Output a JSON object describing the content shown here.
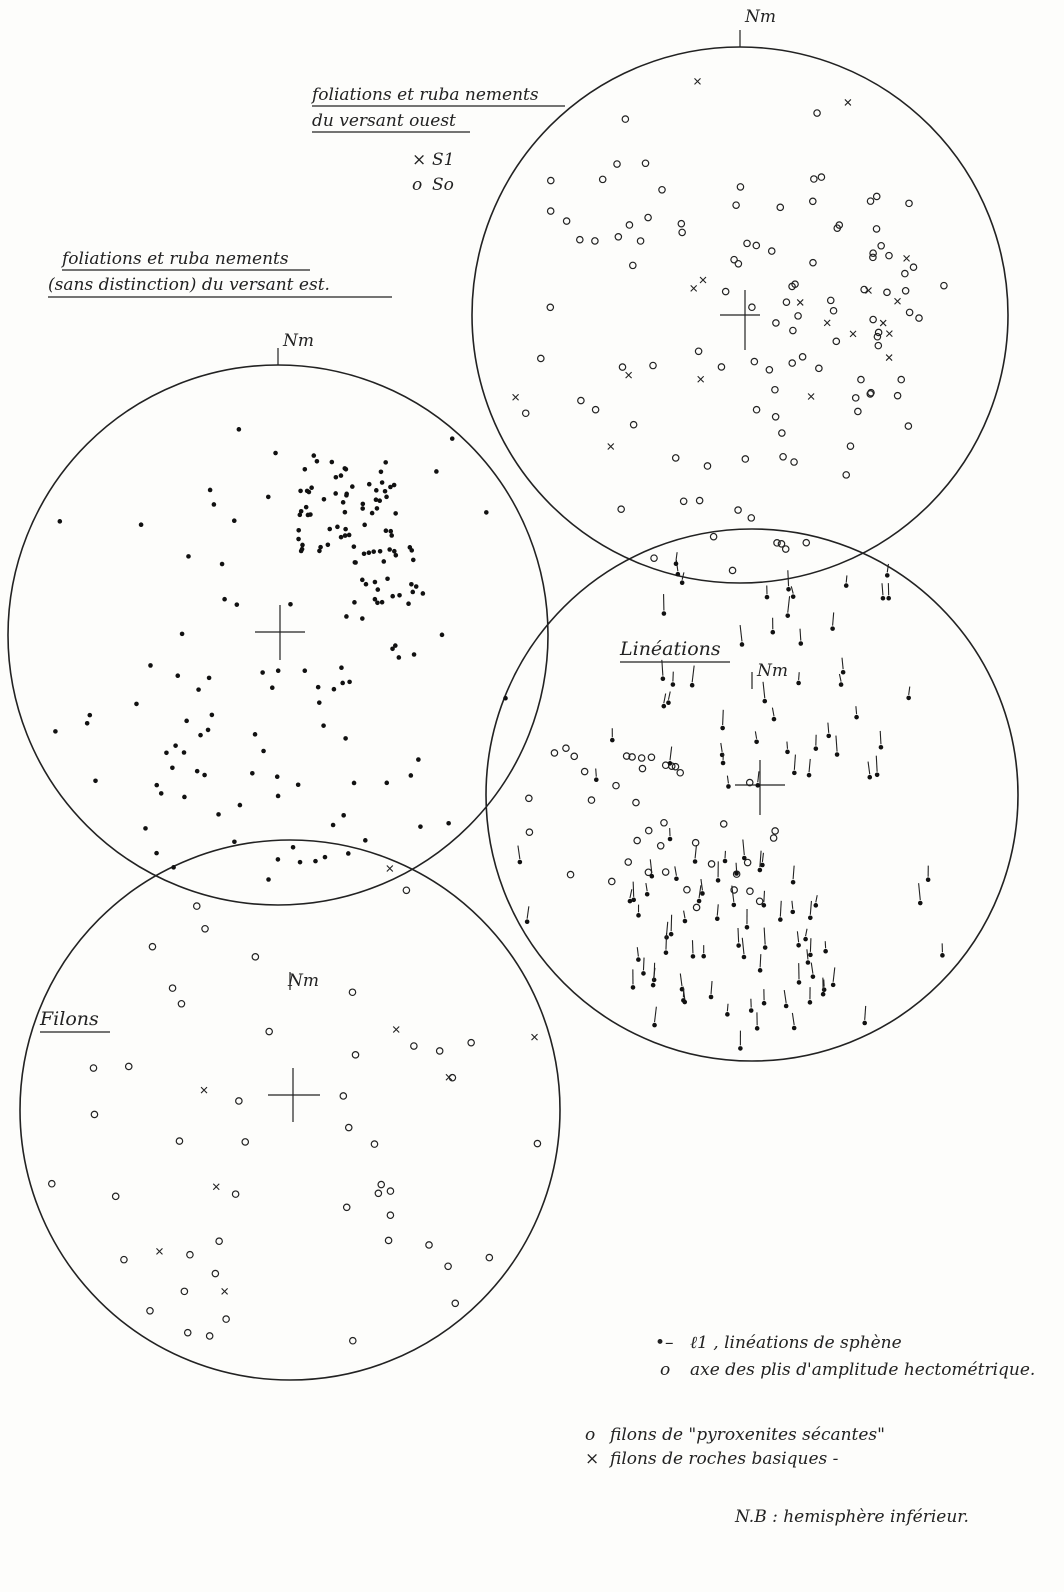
{
  "stereonets": [
    {
      "title_lines": [
        "foliations et ruba nements",
        "du versant ouest"
      ],
      "north": "Nm",
      "legend": [
        {
          "symbol": "×",
          "label": "S1"
        },
        {
          "symbol": "o",
          "label": "So"
        }
      ]
    },
    {
      "title_lines": [
        "foliations et ruba nements",
        "(sans distinction) du versant est."
      ],
      "north": "Nm"
    },
    {
      "title_lines": [
        "Linéations"
      ],
      "north": "Nm",
      "legend": [
        {
          "symbol": "•–",
          "label": "ℓ1 , linéations de sphène"
        },
        {
          "symbol": "o",
          "label": "axe des plis d'amplitude hectométrique."
        }
      ]
    },
    {
      "title_lines": [
        "Filons"
      ],
      "north": "Nm",
      "legend": [
        {
          "symbol": "o",
          "label": "filons de \"pyroxenites sécantes\""
        },
        {
          "symbol": "×",
          "label": "filons de roches basiques -"
        }
      ]
    }
  ],
  "note": "N.B : hemisphère inférieur."
}
